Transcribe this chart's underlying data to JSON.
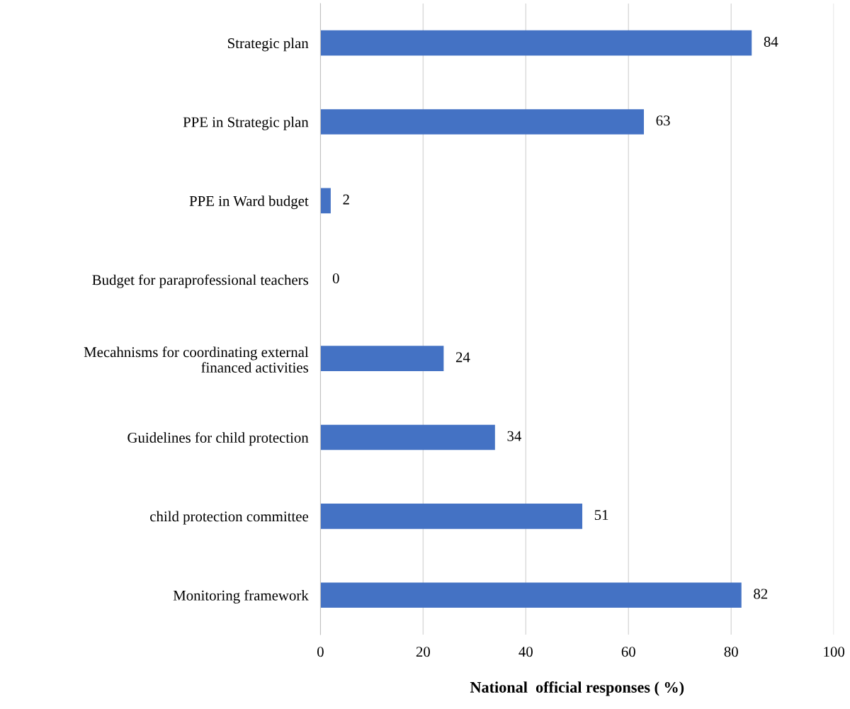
{
  "chart_data": {
    "type": "bar",
    "orientation": "horizontal",
    "xlabel": "National  official responses ( %)",
    "categories": [
      "Strategic plan",
      "PPE in Strategic plan",
      "PPE in Ward budget",
      "Budget for paraprofessional teachers",
      "Mecahnisms for coordinating external\nfinanced activities",
      "Guidelines for child protection",
      "child protection committee",
      "Monitoring framework"
    ],
    "values": [
      84,
      63,
      2,
      0,
      24,
      34,
      51,
      82
    ],
    "color": "#4472c4",
    "xlim": [
      0,
      100
    ],
    "xticks": [
      0,
      20,
      40,
      60,
      80,
      100
    ],
    "grid": "x",
    "data_labels": true
  }
}
